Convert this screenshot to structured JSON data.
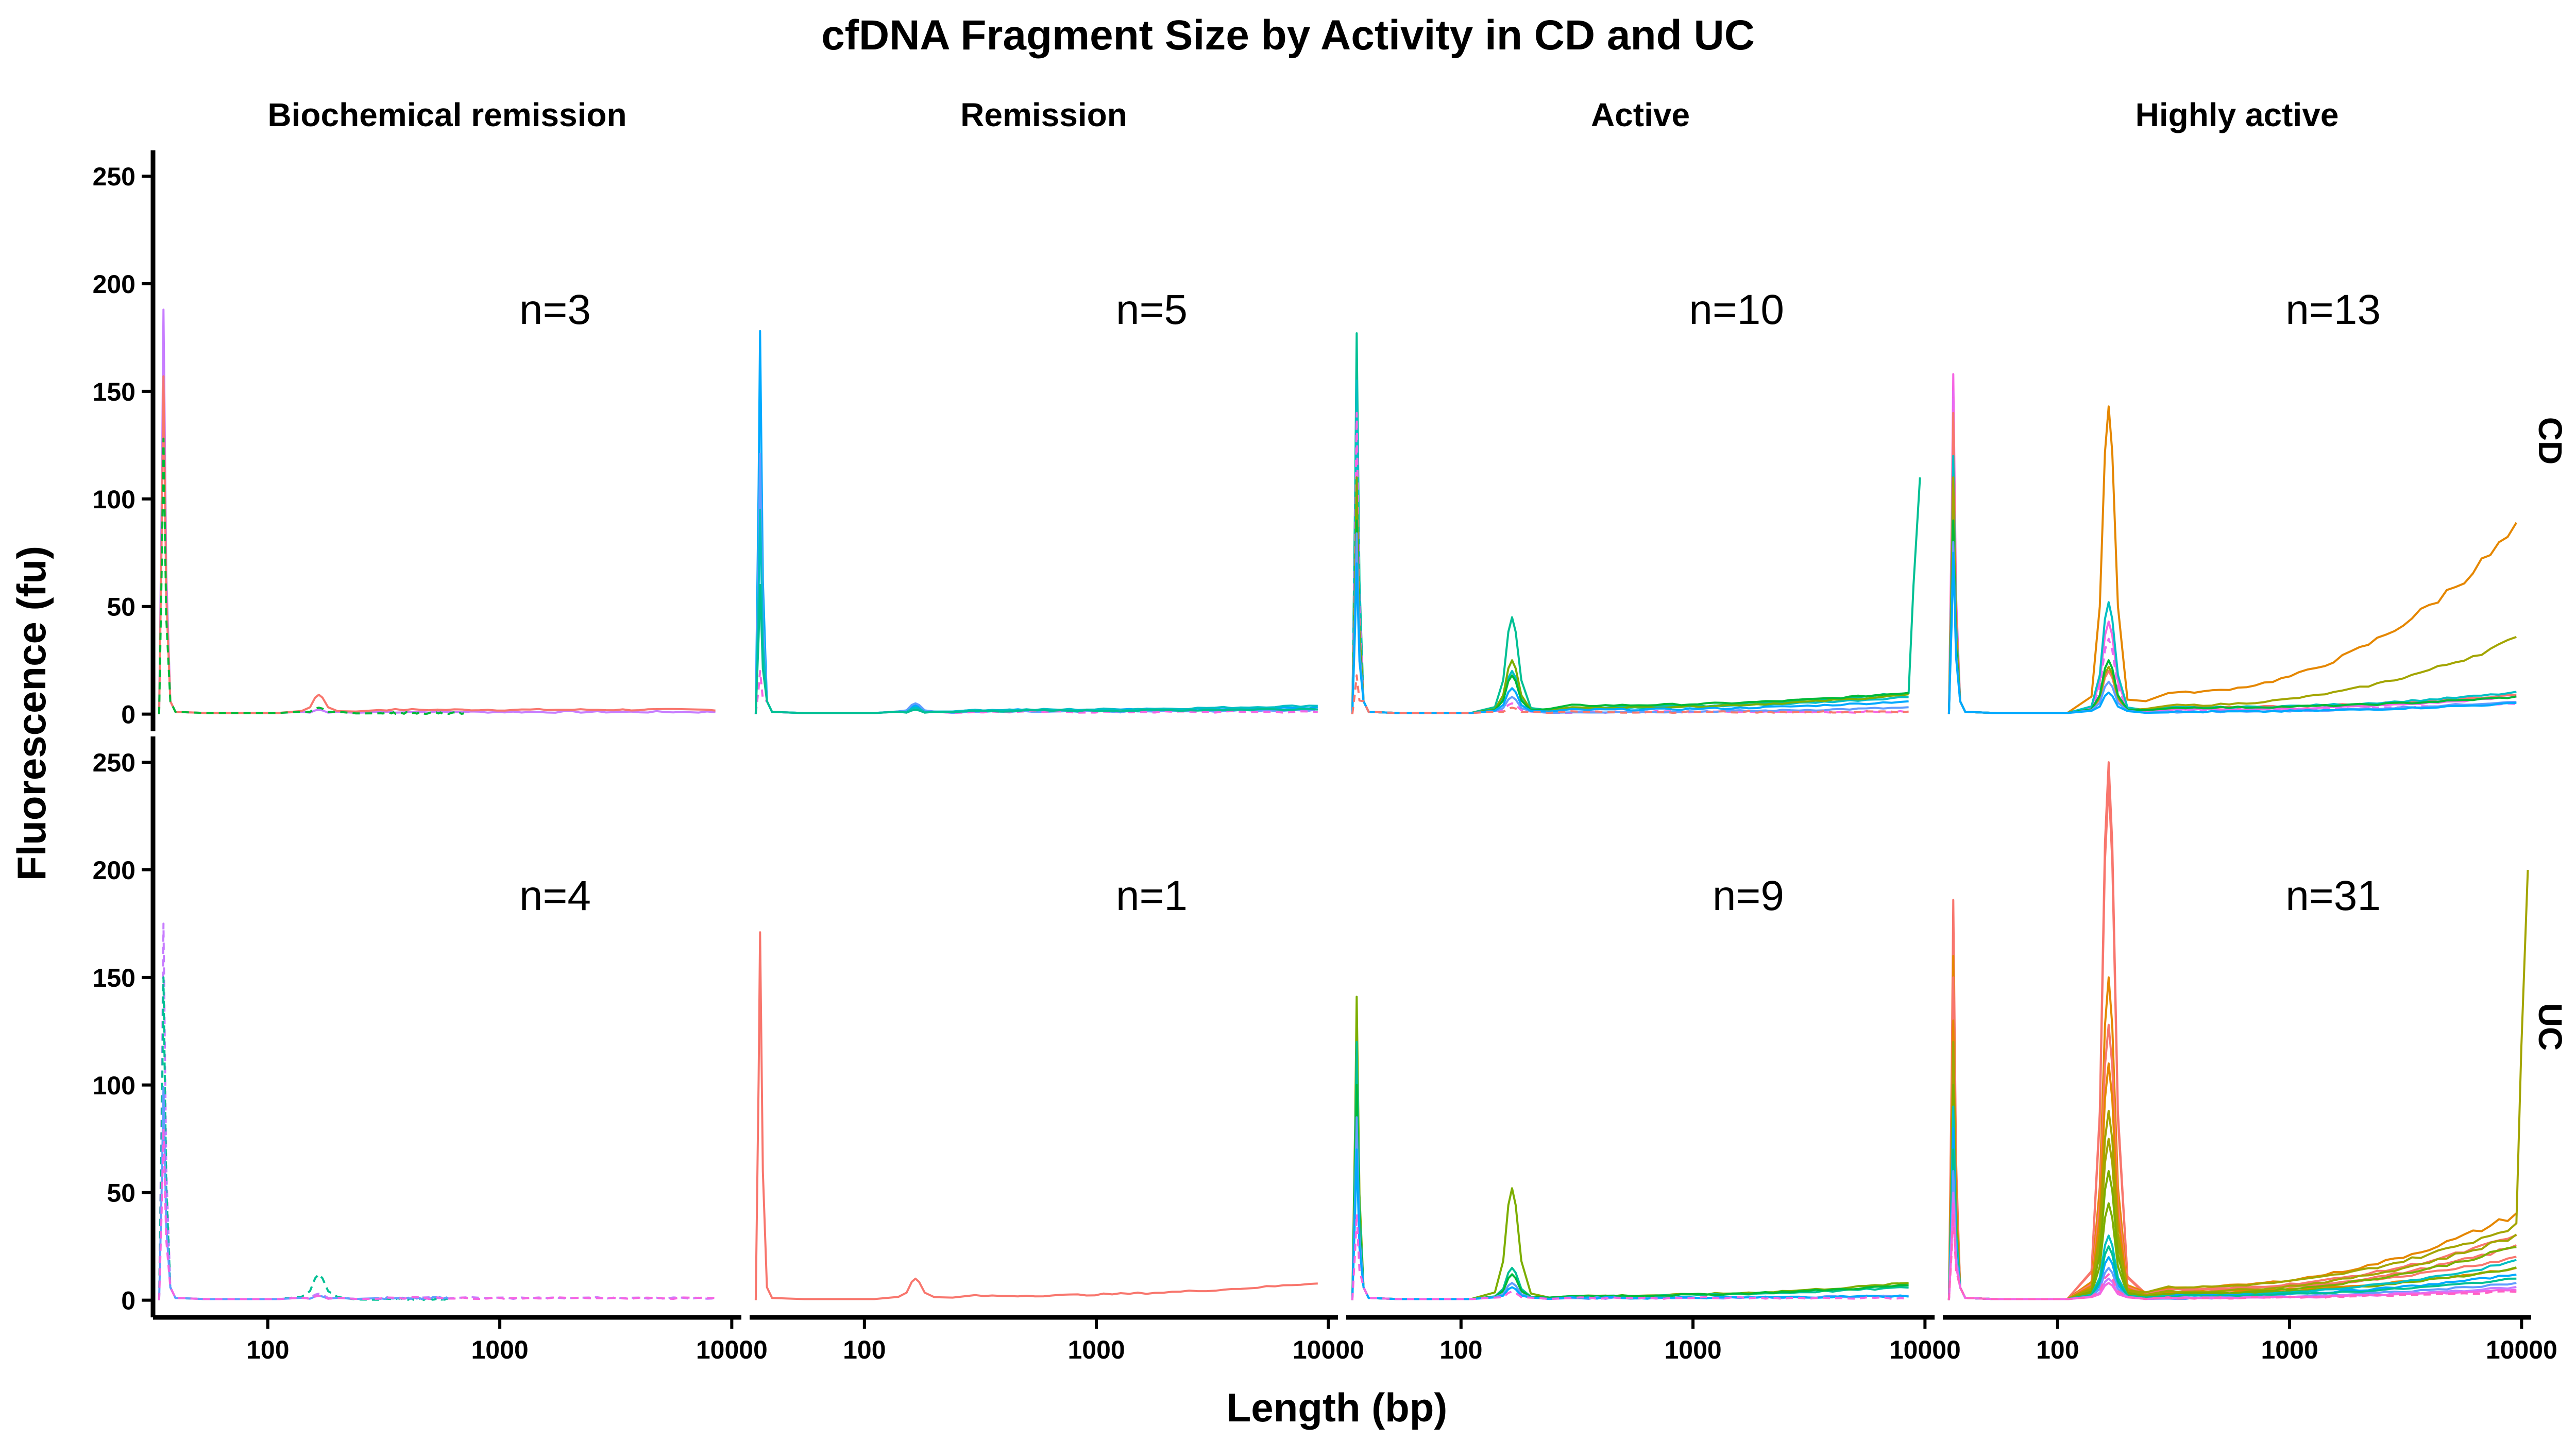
{
  "chart_data": {
    "type": "line",
    "title": "cfDNA Fragment Size by Activity in CD and UC",
    "xlabel": "Length (bp)",
    "ylabel": "Fluorescence (fu)",
    "x_scale": "log",
    "xlim": [
      32,
      11000
    ],
    "ylim": [
      -8,
      262
    ],
    "x_ticks": [
      {
        "value": 100,
        "label": "100"
      },
      {
        "value": 1000,
        "label": "1000"
      },
      {
        "value": 10000,
        "label": "10000"
      }
    ],
    "y_ticks": [
      {
        "value": 0,
        "label": "0"
      },
      {
        "value": 50,
        "label": "50"
      },
      {
        "value": 100,
        "label": "100"
      },
      {
        "value": 150,
        "label": "150"
      },
      {
        "value": 200,
        "label": "200"
      },
      {
        "value": 250,
        "label": "250"
      }
    ],
    "grid": false,
    "legend": "none",
    "columns": [
      "Biochemical remission",
      "Remission",
      "Active",
      "Highly active"
    ],
    "rows": [
      "CD",
      "UC"
    ],
    "panels": [
      {
        "row": "CD",
        "column": "Biochemical remission",
        "count_label": "n=3",
        "series": [
          {
            "color": "#c77cff",
            "marker": 188,
            "peak166": 2,
            "plateau": 1,
            "end": 1,
            "xmax": 8500,
            "dashed": false
          },
          {
            "color": "#f8766d",
            "marker": 157,
            "peak166": 9,
            "plateau": 2,
            "end": 2,
            "xmax": 8500,
            "dashed": false
          },
          {
            "color": "#00ba38",
            "marker": 128,
            "peak166": 3,
            "plateau": 0.5,
            "end": 0.5,
            "xmax": 700,
            "dashed": true
          }
        ]
      },
      {
        "row": "CD",
        "column": "Remission",
        "count_label": "n=5",
        "series": [
          {
            "color": "#00a9ff",
            "marker": 178,
            "peak166": 4,
            "plateau": 2,
            "end": 3,
            "xmax": 9000,
            "dashed": false
          },
          {
            "color": "#619cff",
            "marker": 121,
            "peak166": 5,
            "plateau": 1,
            "end": 2,
            "xmax": 9000,
            "dashed": false
          },
          {
            "color": "#00bfc4",
            "marker": 95,
            "peak166": 3,
            "plateau": 2,
            "end": 4,
            "xmax": 9000,
            "dashed": false
          },
          {
            "color": "#f564e3",
            "marker": 20,
            "peak166": 2,
            "plateau": 1,
            "end": 1,
            "xmax": 9000,
            "dashed": true
          },
          {
            "color": "#00c094",
            "marker": 60,
            "peak166": 2,
            "plateau": 1.5,
            "end": 2.5,
            "xmax": 9000,
            "dashed": false
          }
        ]
      },
      {
        "row": "CD",
        "column": "Active",
        "count_label": "n=10",
        "series": [
          {
            "color": "#00c094",
            "marker": 177,
            "peak166": 45,
            "plateau": 3,
            "end": 10,
            "xmax": 8500,
            "tail": 110,
            "dashed": false
          },
          {
            "color": "#00bfc4",
            "marker": 155,
            "peak166": 20,
            "plateau": 3,
            "end": 8,
            "xmax": 8500,
            "dashed": false
          },
          {
            "color": "#f564e3",
            "marker": 140,
            "peak166": 5,
            "plateau": 1,
            "end": 1,
            "xmax": 8500,
            "dashed": true
          },
          {
            "color": "#7cae00",
            "marker": 110,
            "peak166": 25,
            "plateau": 3,
            "end": 9,
            "xmax": 8500,
            "dashed": false
          },
          {
            "color": "#00ba38",
            "marker": 90,
            "peak166": 18,
            "plateau": 4,
            "end": 10,
            "xmax": 8500,
            "dashed": false
          },
          {
            "color": "#619cff",
            "marker": 84,
            "peak166": 8,
            "plateau": 1,
            "end": 3,
            "xmax": 8500,
            "dashed": false
          },
          {
            "color": "#00a9ff",
            "marker": 70,
            "peak166": 12,
            "plateau": 2,
            "end": 6,
            "xmax": 8500,
            "dashed": false
          },
          {
            "color": "#f8766d",
            "marker": 18,
            "peak166": 3,
            "plateau": 1,
            "end": 1,
            "xmax": 8500,
            "dashed": true
          }
        ]
      },
      {
        "row": "CD",
        "column": "Highly active",
        "count_label": "n=13",
        "series": [
          {
            "color": "#f564e3",
            "marker": 158,
            "peak166": 43,
            "plateau": 2,
            "end": 8,
            "xmax": 9500,
            "dashed": false
          },
          {
            "color": "#e76bf3",
            "marker": 150,
            "peak166": 35,
            "plateau": 2,
            "end": 5,
            "xmax": 9500,
            "dashed": true
          },
          {
            "color": "#f8766d",
            "marker": 140,
            "peak166": 20,
            "plateau": 3,
            "end": 9,
            "xmax": 9500,
            "dashed": false
          },
          {
            "color": "#e58700",
            "marker": 100,
            "peak166": 143,
            "plateau": 10,
            "end": 86,
            "xmax": 9500,
            "dashed": false
          },
          {
            "color": "#00bfc4",
            "marker": 120,
            "peak166": 52,
            "plateau": 3,
            "end": 10,
            "xmax": 9500,
            "dashed": false
          },
          {
            "color": "#a3a500",
            "marker": 110,
            "peak166": 22,
            "plateau": 4,
            "end": 35,
            "xmax": 9500,
            "dashed": false
          },
          {
            "color": "#00ba38",
            "marker": 90,
            "peak166": 25,
            "plateau": 3,
            "end": 8,
            "xmax": 9500,
            "dashed": false
          },
          {
            "color": "#619cff",
            "marker": 80,
            "peak166": 15,
            "plateau": 1,
            "end": 6,
            "xmax": 9500,
            "dashed": false
          },
          {
            "color": "#00a9ff",
            "marker": 75,
            "peak166": 10,
            "plateau": 1,
            "end": 5,
            "xmax": 9500,
            "dashed": false
          }
        ]
      },
      {
        "row": "UC",
        "column": "Biochemical remission",
        "count_label": "n=4",
        "series": [
          {
            "color": "#c77cff",
            "marker": 175,
            "peak166": 3,
            "plateau": 1,
            "end": 1,
            "xmax": 8500,
            "dashed": true
          },
          {
            "color": "#00c094",
            "marker": 150,
            "peak166": 12,
            "plateau": 0.5,
            "end": 0.5,
            "xmax": 600,
            "dashed": true
          },
          {
            "color": "#619cff",
            "marker": 99,
            "peak166": 2,
            "plateau": 1,
            "end": 1,
            "xmax": 600,
            "dashed": false
          },
          {
            "color": "#f564e3",
            "marker": 80,
            "peak166": 2,
            "plateau": 1,
            "end": 1,
            "xmax": 8500,
            "dashed": true
          }
        ]
      },
      {
        "row": "UC",
        "column": "Remission",
        "count_label": "n=1",
        "series": [
          {
            "color": "#f8766d",
            "marker": 171,
            "peak166": 10,
            "plateau": 2,
            "end": 8,
            "xmax": 9000,
            "dashed": false
          }
        ]
      },
      {
        "row": "UC",
        "column": "Active",
        "count_label": "n=9",
        "series": [
          {
            "color": "#7cae00",
            "marker": 141,
            "peak166": 52,
            "plateau": 2,
            "end": 8,
            "xmax": 8500,
            "dashed": false
          },
          {
            "color": "#00c094",
            "marker": 120,
            "peak166": 15,
            "plateau": 2,
            "end": 6,
            "xmax": 8500,
            "dashed": false
          },
          {
            "color": "#00ba38",
            "marker": 100,
            "peak166": 12,
            "plateau": 2,
            "end": 7,
            "xmax": 8500,
            "dashed": false
          },
          {
            "color": "#619cff",
            "marker": 85,
            "peak166": 8,
            "plateau": 1,
            "end": 2,
            "xmax": 8500,
            "dashed": false
          },
          {
            "color": "#00a9ff",
            "marker": 70,
            "peak166": 6,
            "plateau": 1,
            "end": 2,
            "xmax": 8500,
            "dashed": false
          },
          {
            "color": "#f564e3",
            "marker": 40,
            "peak166": 4,
            "plateau": 1,
            "end": 1,
            "xmax": 8500,
            "dashed": true
          }
        ]
      },
      {
        "row": "UC",
        "column": "Highly active",
        "count_label": "n=31",
        "series": [
          {
            "color": "#f8766d",
            "marker": 186,
            "peak166": 250,
            "plateau": 5,
            "end": 30,
            "xmax": 9500,
            "dashed": false
          },
          {
            "color": "#f8766d",
            "marker": 175,
            "peak166": 240,
            "plateau": 4,
            "end": 25,
            "xmax": 9500,
            "dashed": false
          },
          {
            "color": "#e58700",
            "marker": 160,
            "peak166": 150,
            "plateau": 6,
            "end": 40,
            "xmax": 9500,
            "dashed": false
          },
          {
            "color": "#f8766d",
            "marker": 150,
            "peak166": 128,
            "plateau": 5,
            "end": 20,
            "xmax": 9500,
            "dashed": false
          },
          {
            "color": "#e58700",
            "marker": 130,
            "peak166": 110,
            "plateau": 4,
            "end": 15,
            "xmax": 9500,
            "dashed": false
          },
          {
            "color": "#a3a500",
            "marker": 120,
            "peak166": 88,
            "plateau": 6,
            "end": 35,
            "xmax": 9500,
            "tail": 200,
            "dashed": false
          },
          {
            "color": "#a3a500",
            "marker": 110,
            "peak166": 75,
            "plateau": 4,
            "end": 30,
            "xmax": 9500,
            "dashed": false
          },
          {
            "color": "#7cae00",
            "marker": 100,
            "peak166": 60,
            "plateau": 3,
            "end": 25,
            "xmax": 9500,
            "dashed": false
          },
          {
            "color": "#7cae00",
            "marker": 95,
            "peak166": 45,
            "plateau": 3,
            "end": 15,
            "xmax": 9500,
            "dashed": false
          },
          {
            "color": "#00bfc4",
            "marker": 90,
            "peak166": 30,
            "plateau": 2,
            "end": 18,
            "xmax": 9500,
            "dashed": false
          },
          {
            "color": "#00a9ff",
            "marker": 80,
            "peak166": 20,
            "plateau": 2,
            "end": 12,
            "xmax": 9500,
            "dashed": false
          },
          {
            "color": "#00c094",
            "marker": 70,
            "peak166": 25,
            "plateau": 2,
            "end": 10,
            "xmax": 9500,
            "dashed": false
          },
          {
            "color": "#619cff",
            "marker": 60,
            "peak166": 15,
            "plateau": 1,
            "end": 8,
            "xmax": 9500,
            "dashed": false
          },
          {
            "color": "#c77cff",
            "marker": 50,
            "peak166": 10,
            "plateau": 1,
            "end": 6,
            "xmax": 9500,
            "dashed": false
          },
          {
            "color": "#f564e3",
            "marker": 45,
            "peak166": 8,
            "plateau": 1,
            "end": 5,
            "xmax": 9500,
            "dashed": false
          },
          {
            "color": "#ff61c3",
            "marker": 40,
            "peak166": 12,
            "plateau": 1,
            "end": 4,
            "xmax": 9500,
            "dashed": true
          }
        ]
      }
    ]
  }
}
